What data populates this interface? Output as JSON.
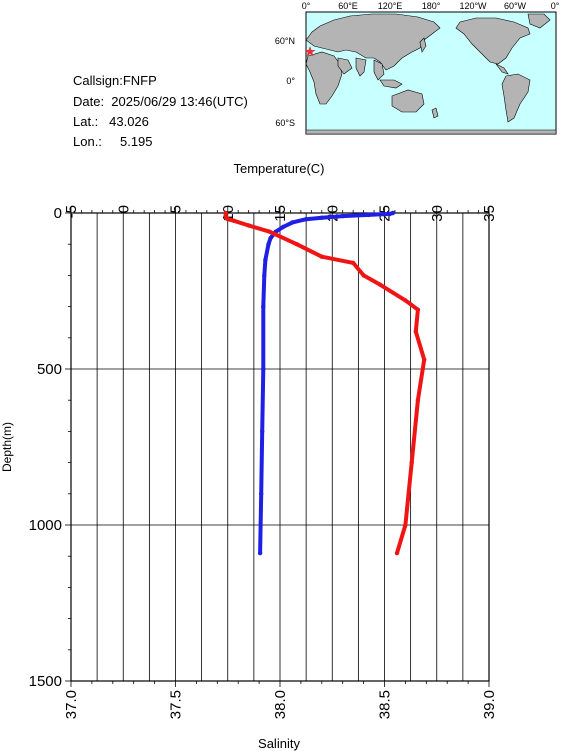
{
  "info": {
    "callsign": "Callsign:FNFP",
    "date": "Date:  2025/06/29 13:46(UTC)",
    "lat": "Lat.:   43.026",
    "lon": "Lon.:     5.195"
  },
  "map": {
    "top_labels": [
      "0°",
      "60°E",
      "120°E",
      "180°",
      "120°W",
      "60°W",
      "0°"
    ],
    "lat_labels": [
      "60°N",
      "0°",
      "60°S"
    ],
    "marker_color": "#e8323c",
    "ocean_color": "#c8ffff",
    "land_color": "#b4b4b4"
  },
  "chart_data": {
    "type": "line",
    "title": "",
    "xlabel_top": "Temperature(C)",
    "xlabel_bottom": "Salinity",
    "ylabel": "Depth(m)",
    "top_axis": {
      "label": "Temperature(C)",
      "range": [
        -5,
        35
      ],
      "ticks": [
        "-5",
        "0",
        "5",
        "10",
        "15",
        "20",
        "25",
        "30",
        "35"
      ]
    },
    "bottom_axis": {
      "label": "Salinity",
      "range": [
        37.0,
        39.0
      ],
      "ticks": [
        "37.0",
        "37.5",
        "38.0",
        "38.5",
        "39.0"
      ]
    },
    "y_axis": {
      "label": "Depth(m)",
      "range": [
        0,
        1500
      ],
      "inverted": true,
      "ticks": [
        "0",
        "500",
        "1000",
        "1500"
      ]
    },
    "grid": true,
    "series": [
      {
        "quantity": "temperature",
        "axis": "top",
        "color": "#1f1fe6",
        "points": [
          [
            25.8,
            0
          ],
          [
            25.5,
            3
          ],
          [
            23.5,
            6
          ],
          [
            21.0,
            10
          ],
          [
            19.0,
            15
          ],
          [
            17.5,
            20
          ],
          [
            16.2,
            30
          ],
          [
            15.3,
            45
          ],
          [
            14.6,
            60
          ],
          [
            14.1,
            80
          ],
          [
            13.9,
            100
          ],
          [
            13.6,
            150
          ],
          [
            13.5,
            200
          ],
          [
            13.4,
            300
          ],
          [
            13.4,
            500
          ],
          [
            13.3,
            700
          ],
          [
            13.2,
            900
          ],
          [
            13.1,
            1090
          ]
        ]
      },
      {
        "quantity": "salinity",
        "axis": "bottom",
        "color": "#f01414",
        "points": [
          [
            37.74,
            0
          ],
          [
            37.74,
            10
          ],
          [
            37.75,
            20
          ],
          [
            37.78,
            25
          ],
          [
            37.85,
            40
          ],
          [
            37.95,
            60
          ],
          [
            38.08,
            100
          ],
          [
            38.2,
            140
          ],
          [
            38.35,
            160
          ],
          [
            38.4,
            200
          ],
          [
            38.48,
            230
          ],
          [
            38.6,
            280
          ],
          [
            38.66,
            310
          ],
          [
            38.65,
            380
          ],
          [
            38.69,
            470
          ],
          [
            38.66,
            600
          ],
          [
            38.63,
            800
          ],
          [
            38.6,
            1000
          ],
          [
            38.56,
            1090
          ]
        ]
      }
    ]
  }
}
